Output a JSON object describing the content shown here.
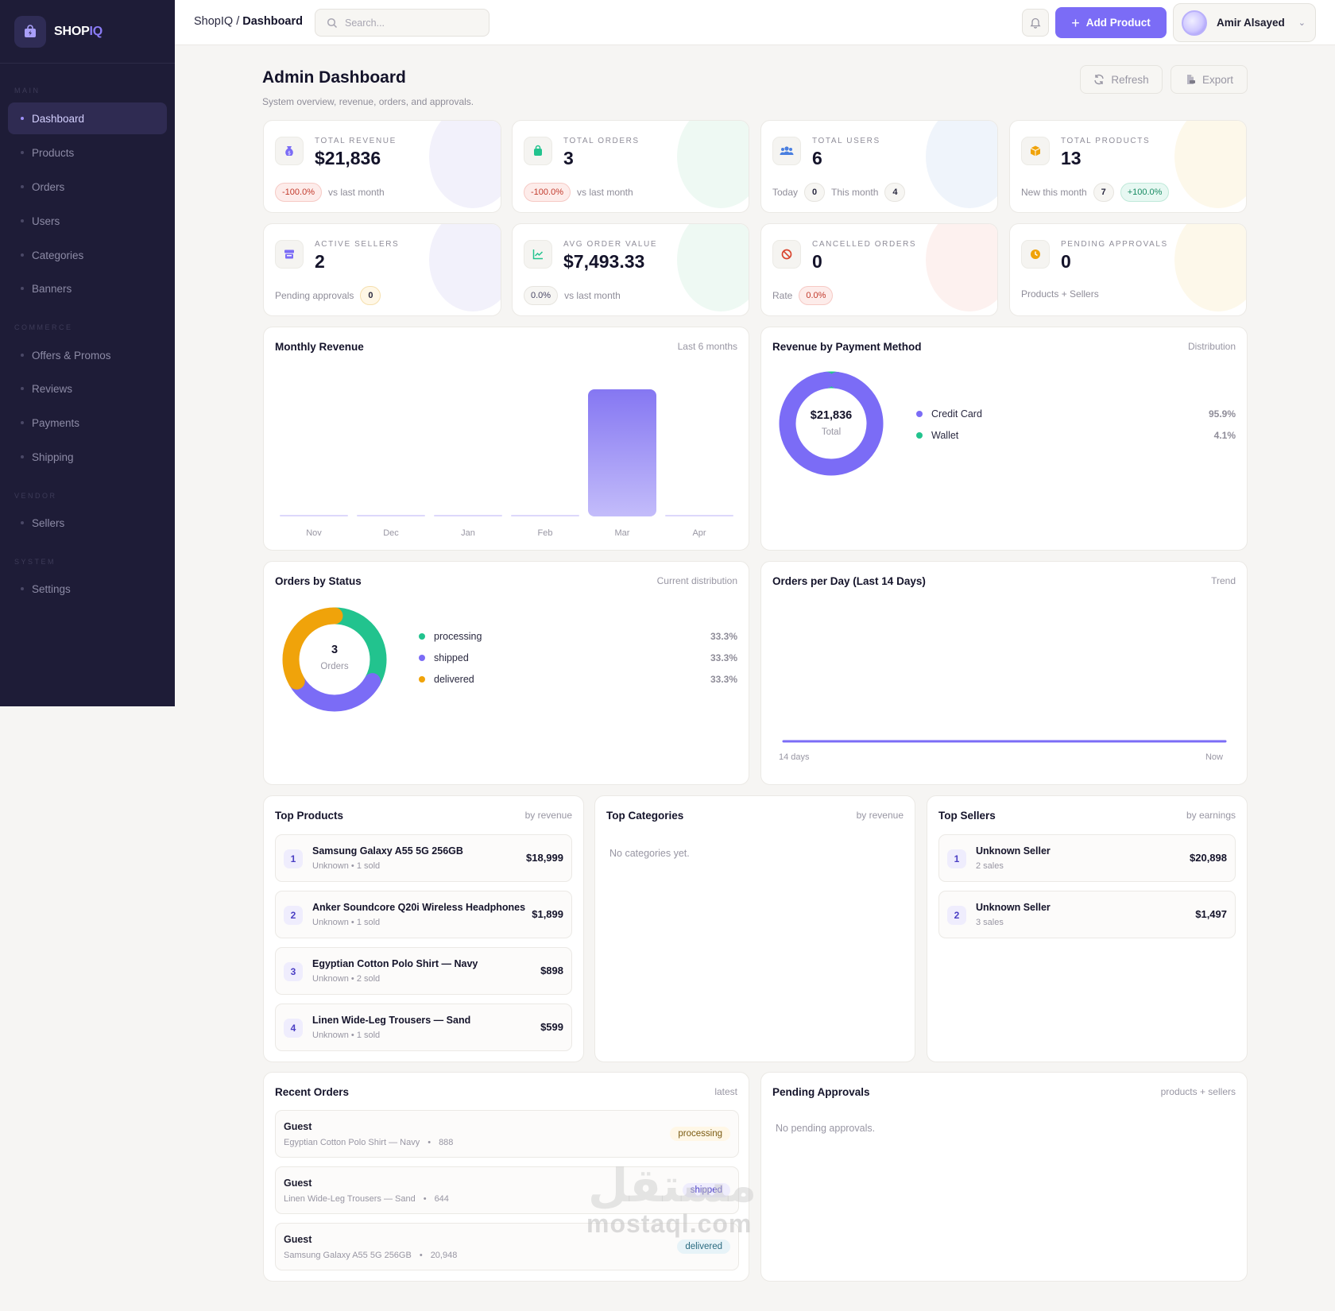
{
  "brand": {
    "name_main": "SHOP",
    "name_accent": "IQ"
  },
  "sidebar": {
    "sections": [
      {
        "label": "MAIN"
      },
      {
        "label": "COMMERCE"
      },
      {
        "label": "VENDOR"
      },
      {
        "label": "SYSTEM"
      }
    ],
    "items": [
      {
        "label": "Dashboard"
      },
      {
        "label": "Products"
      },
      {
        "label": "Orders"
      },
      {
        "label": "Users"
      },
      {
        "label": "Categories"
      },
      {
        "label": "Banners"
      },
      {
        "label": "Offers & Promos"
      },
      {
        "label": "Reviews"
      },
      {
        "label": "Payments"
      },
      {
        "label": "Shipping"
      },
      {
        "label": "Sellers"
      },
      {
        "label": "Settings"
      }
    ]
  },
  "topbar": {
    "crumb_root": "ShopIQ",
    "crumb_sep": " / ",
    "crumb_current": "Dashboard",
    "search_placeholder": "Search...",
    "add_product": "Add Product",
    "user_name": "Amir Alsayed"
  },
  "header": {
    "title": "Admin Dashboard",
    "subtitle": "System overview, revenue, orders, and approvals.",
    "refresh": "Refresh",
    "export": "Export"
  },
  "stats": {
    "revenue": {
      "label": "TOTAL REVENUE",
      "value": "$21,836",
      "change": "-100.0%",
      "note": "vs last month"
    },
    "orders": {
      "label": "TOTAL ORDERS",
      "value": "3",
      "change": "-100.0%",
      "note": "vs last month"
    },
    "users": {
      "label": "TOTAL USERS",
      "value": "6",
      "today_label": "Today",
      "today": "0",
      "month_label": "This month",
      "month": "4"
    },
    "products": {
      "label": "TOTAL PRODUCTS",
      "value": "13",
      "new_label": "New this month",
      "new": "7",
      "change": "+100.0%"
    },
    "sellers": {
      "label": "ACTIVE SELLERS",
      "value": "2",
      "pending_label": "Pending approvals",
      "pending": "0"
    },
    "aov": {
      "label": "AVG ORDER VALUE",
      "value": "$7,493.33",
      "change": "0.0%",
      "note": "vs last month"
    },
    "cancelled": {
      "label": "CANCELLED ORDERS",
      "value": "0",
      "rate_label": "Rate",
      "rate": "0.0%"
    },
    "approvals": {
      "label": "PENDING APPROVALS",
      "value": "0",
      "note": "Products + Sellers"
    }
  },
  "monthly_revenue": {
    "title": "Monthly Revenue",
    "right": "Last 6 months",
    "chart_data": {
      "type": "bar",
      "categories": [
        "Nov",
        "Dec",
        "Jan",
        "Feb",
        "Mar",
        "Apr"
      ],
      "values": [
        0,
        0,
        0,
        0,
        21836,
        0
      ],
      "title": "Monthly Revenue"
    }
  },
  "payment_method": {
    "title": "Revenue by Payment Method",
    "right": "Distribution",
    "total_value": "$21,836",
    "total_label": "Total",
    "items": [
      {
        "name": "Credit Card",
        "pct": "95.9%",
        "value": 95.9,
        "color": "#7b6cf6"
      },
      {
        "name": "Wallet",
        "pct": "4.1%",
        "value": 4.1,
        "color": "#22c38e"
      }
    ]
  },
  "orders_status": {
    "title": "Orders by Status",
    "right": "Current distribution",
    "center_value": "3",
    "center_label": "Orders",
    "items": [
      {
        "name": "processing",
        "pct": "33.3%",
        "value": 33.3,
        "color": "#22c38e"
      },
      {
        "name": "shipped",
        "pct": "33.3%",
        "value": 33.3,
        "color": "#7b6cf6"
      },
      {
        "name": "delivered",
        "pct": "33.3%",
        "value": 33.3,
        "color": "#f0a30a"
      }
    ]
  },
  "orders_per_day": {
    "title": "Orders per Day (Last 14 Days)",
    "right": "Trend",
    "start_label": "14 days",
    "end_label": "Now",
    "chart_data": {
      "type": "line",
      "values": [
        0,
        0,
        0,
        0,
        0,
        0,
        0,
        0,
        0,
        0,
        0,
        0,
        0,
        0
      ],
      "color": "#7b6cf6"
    }
  },
  "top_products": {
    "title": "Top Products",
    "right": "by revenue",
    "items": [
      {
        "rank": "1",
        "name": "Samsung Galaxy A55 5G 256GB",
        "sub": "Unknown • 1 sold",
        "amount": "$18,999"
      },
      {
        "rank": "2",
        "name": "Anker Soundcore Q20i Wireless Headphones",
        "sub": "Unknown • 1 sold",
        "amount": "$1,899"
      },
      {
        "rank": "3",
        "name": "Egyptian Cotton Polo Shirt — Navy",
        "sub": "Unknown • 2 sold",
        "amount": "$898"
      },
      {
        "rank": "4",
        "name": "Linen Wide-Leg Trousers — Sand",
        "sub": "Unknown • 1 sold",
        "amount": "$599"
      }
    ]
  },
  "top_categories": {
    "title": "Top Categories",
    "right": "by revenue",
    "empty": "No categories yet."
  },
  "top_sellers": {
    "title": "Top Sellers",
    "right": "by earnings",
    "items": [
      {
        "rank": "1",
        "name": "Unknown Seller",
        "sub": "2 sales",
        "amount": "$20,898"
      },
      {
        "rank": "2",
        "name": "Unknown Seller",
        "sub": "3 sales",
        "amount": "$1,497"
      }
    ]
  },
  "recent_orders": {
    "title": "Recent Orders",
    "right": "latest",
    "items": [
      {
        "customer": "Guest",
        "product": "Egyptian Cotton Polo Shirt — Navy",
        "amount": "888",
        "status": "processing"
      },
      {
        "customer": "Guest",
        "product": "Linen Wide-Leg Trousers — Sand",
        "amount": "644",
        "status": "shipped"
      },
      {
        "customer": "Guest",
        "product": "Samsung Galaxy A55 5G 256GB",
        "amount": "20,948",
        "status": "delivered"
      }
    ]
  },
  "pending_approvals": {
    "title": "Pending Approvals",
    "right": "products + sellers",
    "empty": "No pending approvals."
  },
  "watermark": {
    "arabic": "مستقل",
    "latin": "mostaql.com"
  },
  "colors": {
    "accent": "#7b6cf6",
    "green": "#22c38e",
    "amber": "#f0a30a",
    "sidebar": "#1e1c37"
  }
}
